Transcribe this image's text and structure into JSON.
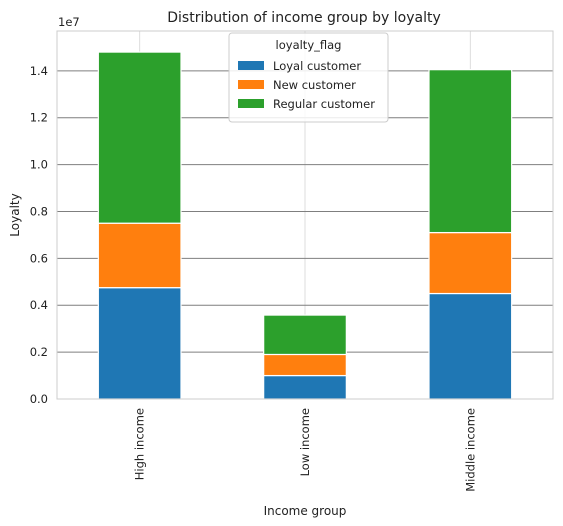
{
  "chart_data": {
    "type": "bar",
    "stacked": true,
    "title": "Distribution of income group by loyalty",
    "xlabel": "Income group",
    "ylabel": "Loyalty",
    "offset_text": "1e7",
    "categories": [
      "High income",
      "Low income",
      "Middle income"
    ],
    "series": [
      {
        "name": "Loyal customer",
        "color": "#1f77b4",
        "values": [
          4750000,
          1000000,
          4500000
        ]
      },
      {
        "name": "New customer",
        "color": "#ff7f0e",
        "values": [
          2750000,
          900000,
          2600000
        ]
      },
      {
        "name": "Regular customer",
        "color": "#2ca02c",
        "values": [
          7300000,
          1680000,
          6950000
        ]
      }
    ],
    "ylim": [
      0,
      15700000
    ],
    "yticks": [
      0,
      2000000,
      4000000,
      6000000,
      8000000,
      10000000,
      12000000,
      14000000
    ],
    "ytick_labels": [
      "0.0",
      "0.2",
      "0.4",
      "0.6",
      "0.8",
      "1.0",
      "1.2",
      "1.4"
    ],
    "legend": {
      "title": "loyalty_flag",
      "placement": "upper center"
    },
    "grid": true
  }
}
